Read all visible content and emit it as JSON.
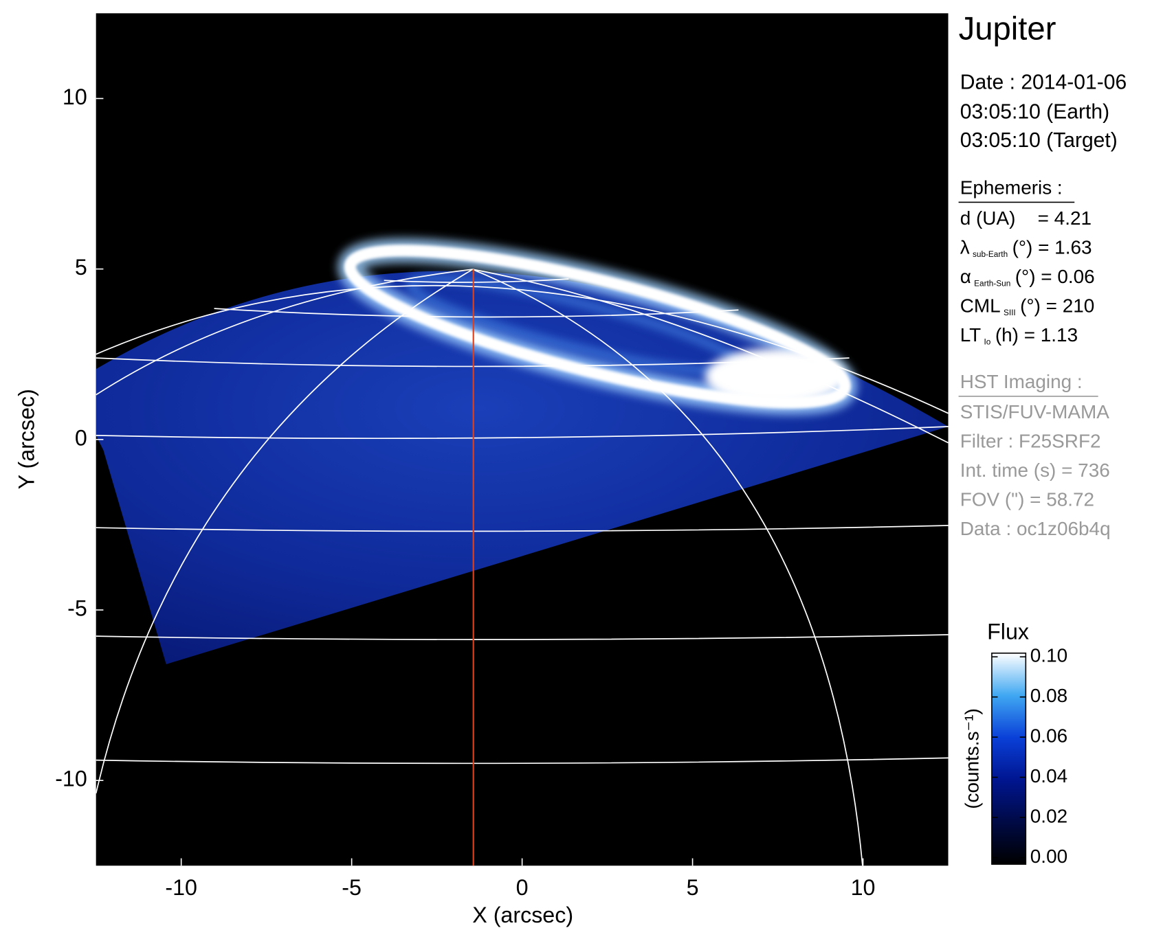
{
  "chart_data": {
    "type": "image",
    "title": "Jupiter",
    "xlabel": "X (arcsec)",
    "ylabel": "Y (arcsec)",
    "xlim": [
      -12.5,
      12.5
    ],
    "ylim": [
      -12.5,
      12.5
    ],
    "xticks": [
      -10,
      -5,
      0,
      5,
      10
    ],
    "yticks": [
      -10,
      -5,
      0,
      5,
      10
    ],
    "info": {
      "date": "Date : 2014-01-06",
      "earth_time": "03:05:10 (Earth)",
      "target_time": "03:05:10 (Target)",
      "ephemeris_title": "Ephemeris :",
      "ephemeris": [
        {
          "symbol": "d (UA)",
          "text": "= 4.21"
        },
        {
          "symbol": "λ",
          "sub": "sub-Earth",
          "text": "(°) = 1.63"
        },
        {
          "symbol": "α",
          "sub": "Earth-Sun",
          "text": "(°) = 0.06"
        },
        {
          "symbol": "CML",
          "sub": "SIII",
          "text": "(°) = 210"
        },
        {
          "symbol": "LT",
          "sub": "Io",
          "text": "(h) = 1.13"
        }
      ],
      "hst_title": "HST Imaging :",
      "hst": [
        "STIS/FUV-MAMA",
        "Filter : F25SRF2",
        "Int. time (s) = 736",
        "FOV (\") = 58.72",
        "Data : oc1z06b4q"
      ]
    },
    "colorbar": {
      "title": "Flux",
      "label": "(counts.s⁻¹)",
      "clim": [
        0,
        0.1
      ],
      "ticks": [
        {
          "value": 0,
          "label": "0.00"
        },
        0.02,
        0.04,
        0.06,
        0.08,
        {
          "value": 0.1,
          "label": "0.10"
        }
      ]
    }
  }
}
